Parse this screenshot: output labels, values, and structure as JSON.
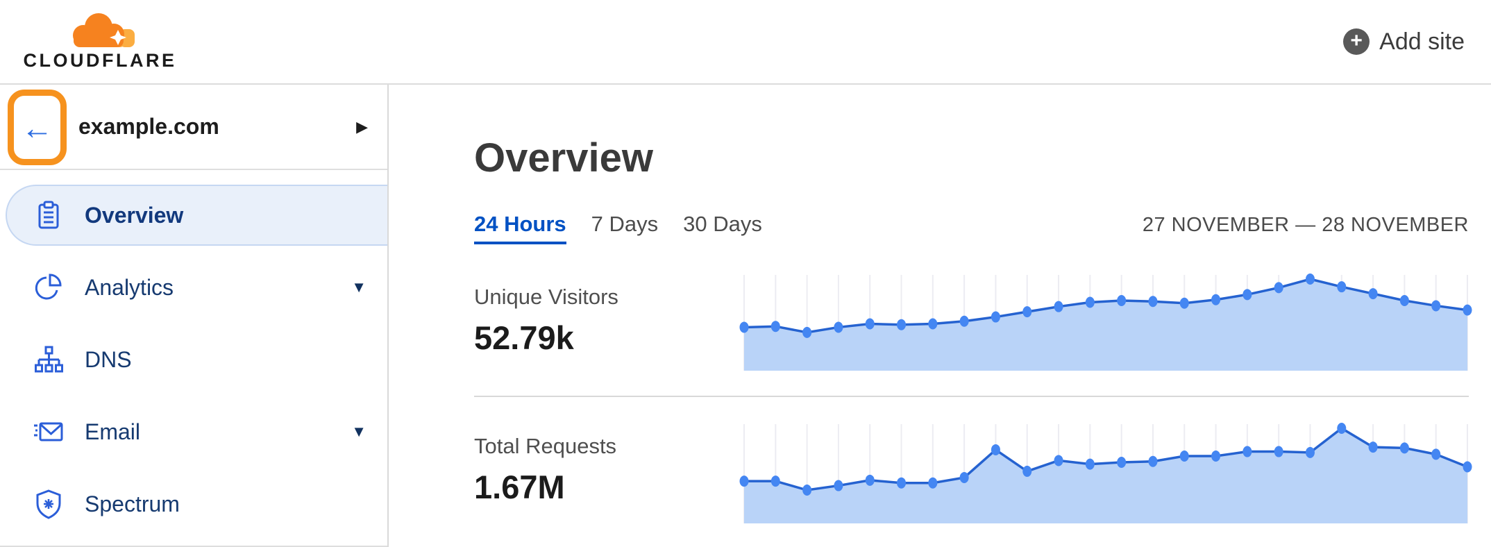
{
  "brand": {
    "wordmark": "CLOUDFLARE"
  },
  "header": {
    "add_site_label": "Add site",
    "add_icon": "plus-circle-icon"
  },
  "sidebar": {
    "site": {
      "name": "example.com",
      "back_icon": "back-arrow-icon",
      "expand_icon": "caret-right-icon"
    },
    "items": [
      {
        "label": "Overview",
        "icon": "clipboard-icon",
        "selected": true,
        "expandable": false
      },
      {
        "label": "Analytics",
        "icon": "pie-chart-icon",
        "selected": false,
        "expandable": true
      },
      {
        "label": "DNS",
        "icon": "dns-tree-icon",
        "selected": false,
        "expandable": false
      },
      {
        "label": "Email",
        "icon": "email-icon",
        "selected": false,
        "expandable": true
      },
      {
        "label": "Spectrum",
        "icon": "shield-icon",
        "selected": false,
        "expandable": false
      }
    ]
  },
  "main": {
    "title": "Overview",
    "tabs": [
      {
        "label": "24 Hours",
        "active": true
      },
      {
        "label": "7 Days",
        "active": false
      },
      {
        "label": "30 Days",
        "active": false
      }
    ],
    "date_range": "27 NOVEMBER — 28 NOVEMBER"
  },
  "chart_data": [
    {
      "type": "area",
      "title": "Unique Visitors",
      "value_label": "52.79k",
      "x_axis": "24 hourly points, 27 November – 28 November",
      "values_normalized": [
        0.44,
        0.45,
        0.38,
        0.44,
        0.48,
        0.47,
        0.48,
        0.51,
        0.56,
        0.62,
        0.68,
        0.73,
        0.75,
        0.74,
        0.72,
        0.76,
        0.82,
        0.9,
        1.0,
        0.91,
        0.83,
        0.75,
        0.69,
        0.64
      ],
      "grid": true,
      "legend": "none",
      "line_color": "#2562d0",
      "dot_color": "#4486f2",
      "fill_color": "#b9d3f8",
      "grid_color": "#ececf2",
      "height": 138
    },
    {
      "type": "area",
      "title": "Total Requests",
      "value_label": "1.67M",
      "x_axis": "24 hourly points, 27 November – 28 November",
      "values_normalized": [
        0.41,
        0.41,
        0.31,
        0.36,
        0.42,
        0.39,
        0.39,
        0.45,
        0.76,
        0.52,
        0.64,
        0.6,
        0.62,
        0.63,
        0.69,
        0.69,
        0.74,
        0.74,
        0.73,
        1.0,
        0.79,
        0.78,
        0.71,
        0.57
      ],
      "grid": true,
      "legend": "none",
      "line_color": "#2562d0",
      "dot_color": "#4486f2",
      "fill_color": "#b9d3f8",
      "grid_color": "#ececf2",
      "height": 143
    }
  ],
  "colors": {
    "brand_orange": "#f6821f",
    "brand_orange_light": "#fbad41",
    "annotation_orange": "#f6921e",
    "link_blue": "#0051c3",
    "sidebar_icon_blue": "#2b5ed8",
    "sidebar_text_navy": "#163a70",
    "selected_pill_bg": "#e9f0fa",
    "divider_gray": "#d9d9d9"
  }
}
